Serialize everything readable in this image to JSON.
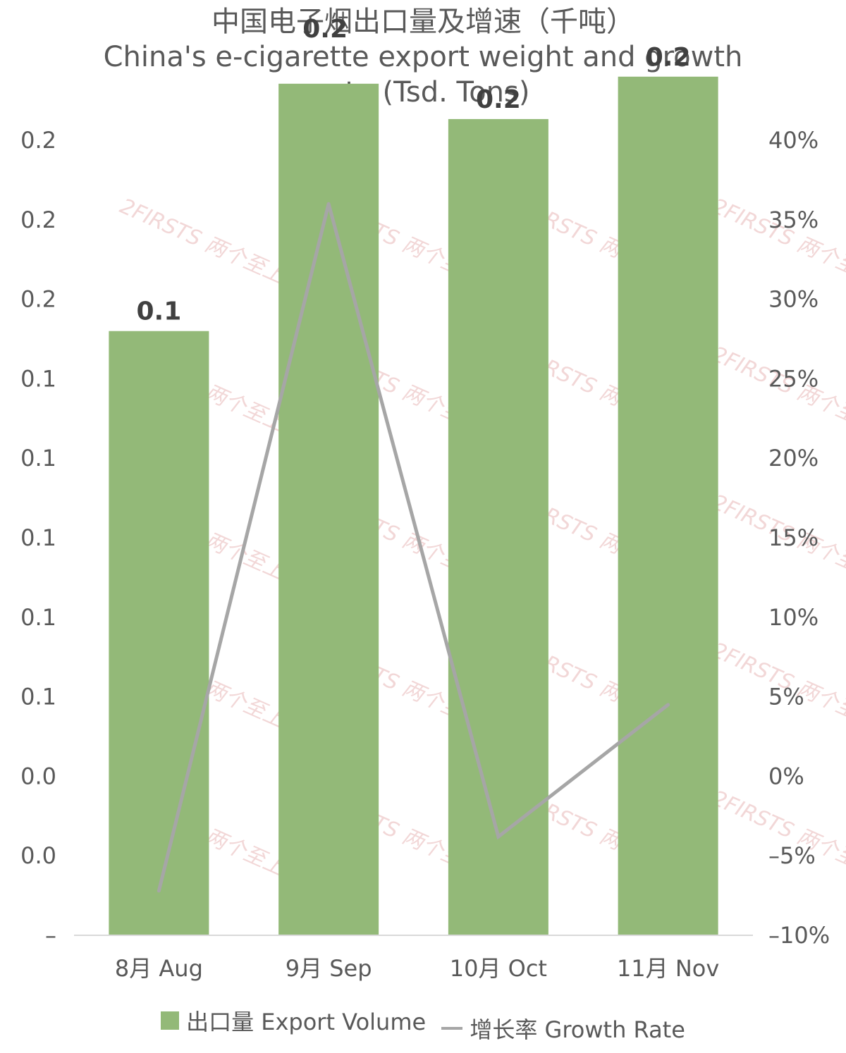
{
  "chart_data": {
    "type": "bar",
    "title": "中国电子烟出口量及增速（千吨）",
    "subtitle_lines": [
      "China's e-cigarette export weight and growth",
      "rate (Tsd. Tons)"
    ],
    "categories": [
      "8月 Aug",
      "9月 Sep",
      "10月 Oct",
      "11月 Nov"
    ],
    "series": [
      {
        "name": "出口量 Export Volume",
        "type": "bar",
        "axis": "left",
        "values": [
          0.146,
          0.216,
          0.206,
          0.218
        ],
        "data_labels": [
          "0.1",
          "0.2",
          "0.2",
          "0.2"
        ],
        "color": "#93b978"
      },
      {
        "name": "增长率 Growth Rate",
        "type": "line",
        "axis": "right",
        "values": [
          -7.2,
          36.0,
          -3.8,
          4.5
        ],
        "color": "#a6a6a6"
      }
    ],
    "y_left": {
      "range": [
        -0.025,
        0.2
      ],
      "tick_labels": [
        "0.2",
        "0.2",
        "0.2",
        "0.1",
        "0.1",
        "0.1",
        "0.1",
        "0.1",
        "0.0",
        "0.0",
        "–"
      ]
    },
    "y_right": {
      "range": [
        -10,
        40
      ],
      "tick_labels": [
        "40%",
        "35%",
        "30%",
        "25%",
        "20%",
        "15%",
        "10%",
        "5%",
        "0%",
        "–5%",
        "–10%"
      ]
    },
    "grid": false,
    "legend_position": "bottom",
    "watermark": "2FIRSTS 两个至上"
  }
}
